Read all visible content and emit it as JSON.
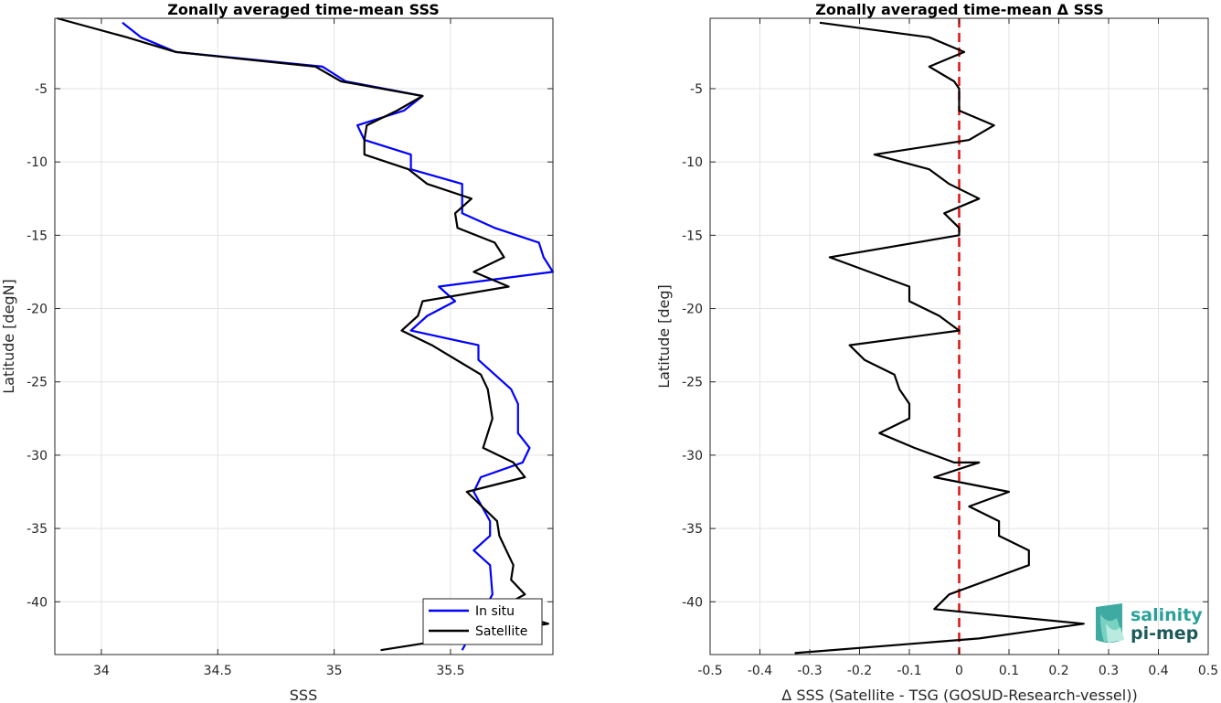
{
  "chart_data": [
    {
      "type": "line",
      "title": "Zonally averaged time-mean SSS",
      "xlabel": "SSS",
      "ylabel": "Latitude [degN]",
      "xlim": [
        33.8,
        35.94
      ],
      "ylim": [
        -43.6,
        -0.2
      ],
      "xticks": [
        34,
        34.5,
        35,
        35.5
      ],
      "yticks": [
        -5,
        -10,
        -15,
        -20,
        -25,
        -30,
        -35,
        -40
      ],
      "grid": true,
      "legend_position": "bottom-right",
      "series": [
        {
          "name": "In situ",
          "color": "#0000ff",
          "x": [
            34.09,
            34.17,
            34.32,
            34.95,
            35.05,
            35.38,
            35.3,
            35.1,
            35.13,
            35.33,
            35.33,
            35.55,
            35.55,
            35.69,
            35.88,
            35.9,
            35.94,
            35.45,
            35.52,
            35.4,
            35.33,
            35.62,
            35.62,
            35.76,
            35.79,
            35.79,
            35.84,
            35.81,
            35.63,
            35.6,
            35.67,
            35.67,
            35.6,
            35.67,
            35.68,
            35.55
          ],
          "y": [
            -0.5,
            -1.5,
            -2.5,
            -3.5,
            -4.5,
            -5.5,
            -6.5,
            -7.5,
            -8.5,
            -9.5,
            -10.5,
            -11.5,
            -13.5,
            -14.5,
            -15.5,
            -16.5,
            -17.5,
            -18.5,
            -19.5,
            -20.5,
            -21.5,
            -22.5,
            -23.5,
            -25.5,
            -26.5,
            -28.5,
            -29.5,
            -30.5,
            -31.5,
            -32.5,
            -34.5,
            -35.5,
            -36.5,
            -37.5,
            -39.5,
            -43.3
          ]
        },
        {
          "name": "Satellite",
          "color": "#000000",
          "x": [
            33.81,
            34.11,
            34.32,
            34.92,
            35.03,
            35.38,
            35.27,
            35.14,
            35.13,
            35.13,
            35.32,
            35.4,
            35.59,
            35.52,
            35.53,
            35.69,
            35.73,
            35.6,
            35.75,
            35.38,
            35.36,
            35.29,
            35.42,
            35.63,
            35.66,
            35.68,
            35.64,
            35.77,
            35.82,
            35.57,
            35.7,
            35.71,
            35.77,
            35.76,
            35.82,
            35.7,
            35.92,
            35.2
          ],
          "y": [
            -0.2,
            -1.5,
            -2.5,
            -3.5,
            -4.5,
            -5.5,
            -6.5,
            -7.5,
            -8.5,
            -9.5,
            -10.5,
            -11.5,
            -12.5,
            -13.5,
            -14.5,
            -15.5,
            -16.5,
            -17.5,
            -18.5,
            -19.5,
            -20.5,
            -21.5,
            -22.5,
            -24.5,
            -25.5,
            -27.5,
            -29.5,
            -30.5,
            -31.5,
            -32.5,
            -34.5,
            -35.5,
            -37.5,
            -38.5,
            -39.5,
            -40.5,
            -41.5,
            -43.3
          ]
        }
      ]
    },
    {
      "type": "line",
      "title": "Zonally averaged time-mean Δ SSS",
      "xlabel": "Δ SSS (Satellite - TSG (GOSUD-Research-vessel))",
      "ylabel": "Latitude [deg]",
      "xlim": [
        -0.5,
        0.5
      ],
      "ylim": [
        -43.6,
        -0.2
      ],
      "xticks": [
        -0.5,
        -0.4,
        -0.3,
        -0.2,
        -0.1,
        0,
        0.1,
        0.2,
        0.3,
        0.4,
        0.5
      ],
      "xtick_labels": [
        "-0.5",
        "-0.4",
        "-0.3",
        "-0.2",
        "-0.1",
        "0",
        "0.1",
        "0.2",
        "0.3",
        "0.4",
        "0.5"
      ],
      "yticks": [
        -5,
        -10,
        -15,
        -20,
        -25,
        -30,
        -35,
        -40
      ],
      "grid": true,
      "zero_line": {
        "x": 0,
        "color": "#e01010",
        "style": "dashed"
      },
      "series": [
        {
          "color": "#000000",
          "x": [
            -0.28,
            -0.06,
            0.01,
            -0.06,
            -0.01,
            0.0,
            0.0,
            0.07,
            0.02,
            -0.17,
            -0.06,
            -0.02,
            0.04,
            -0.03,
            0.0,
            0.0,
            -0.26,
            -0.1,
            -0.1,
            -0.04,
            0.0,
            -0.22,
            -0.19,
            -0.13,
            -0.12,
            -0.1,
            -0.1,
            -0.16,
            -0.09,
            -0.01,
            0.04,
            -0.05,
            0.1,
            0.02,
            0.08,
            0.08,
            0.14,
            0.14,
            -0.02,
            -0.05,
            0.25,
            0.04,
            -0.33
          ],
          "y": [
            -0.5,
            -1.5,
            -2.5,
            -3.5,
            -4.5,
            -5.0,
            -6.5,
            -7.5,
            -8.5,
            -9.5,
            -10.5,
            -11.5,
            -12.5,
            -13.5,
            -14.5,
            -15.0,
            -16.5,
            -18.5,
            -19.5,
            -20.5,
            -21.5,
            -22.5,
            -23.5,
            -24.5,
            -25.5,
            -26.5,
            -27.5,
            -28.5,
            -29.5,
            -30.5,
            -30.5,
            -31.5,
            -32.5,
            -33.5,
            -34.5,
            -35.5,
            -36.5,
            -37.5,
            -39.5,
            -40.5,
            -41.5,
            -42.5,
            -43.5
          ]
        }
      ]
    }
  ],
  "logo": {
    "line1": "salinity",
    "line2": "pi-mep"
  }
}
